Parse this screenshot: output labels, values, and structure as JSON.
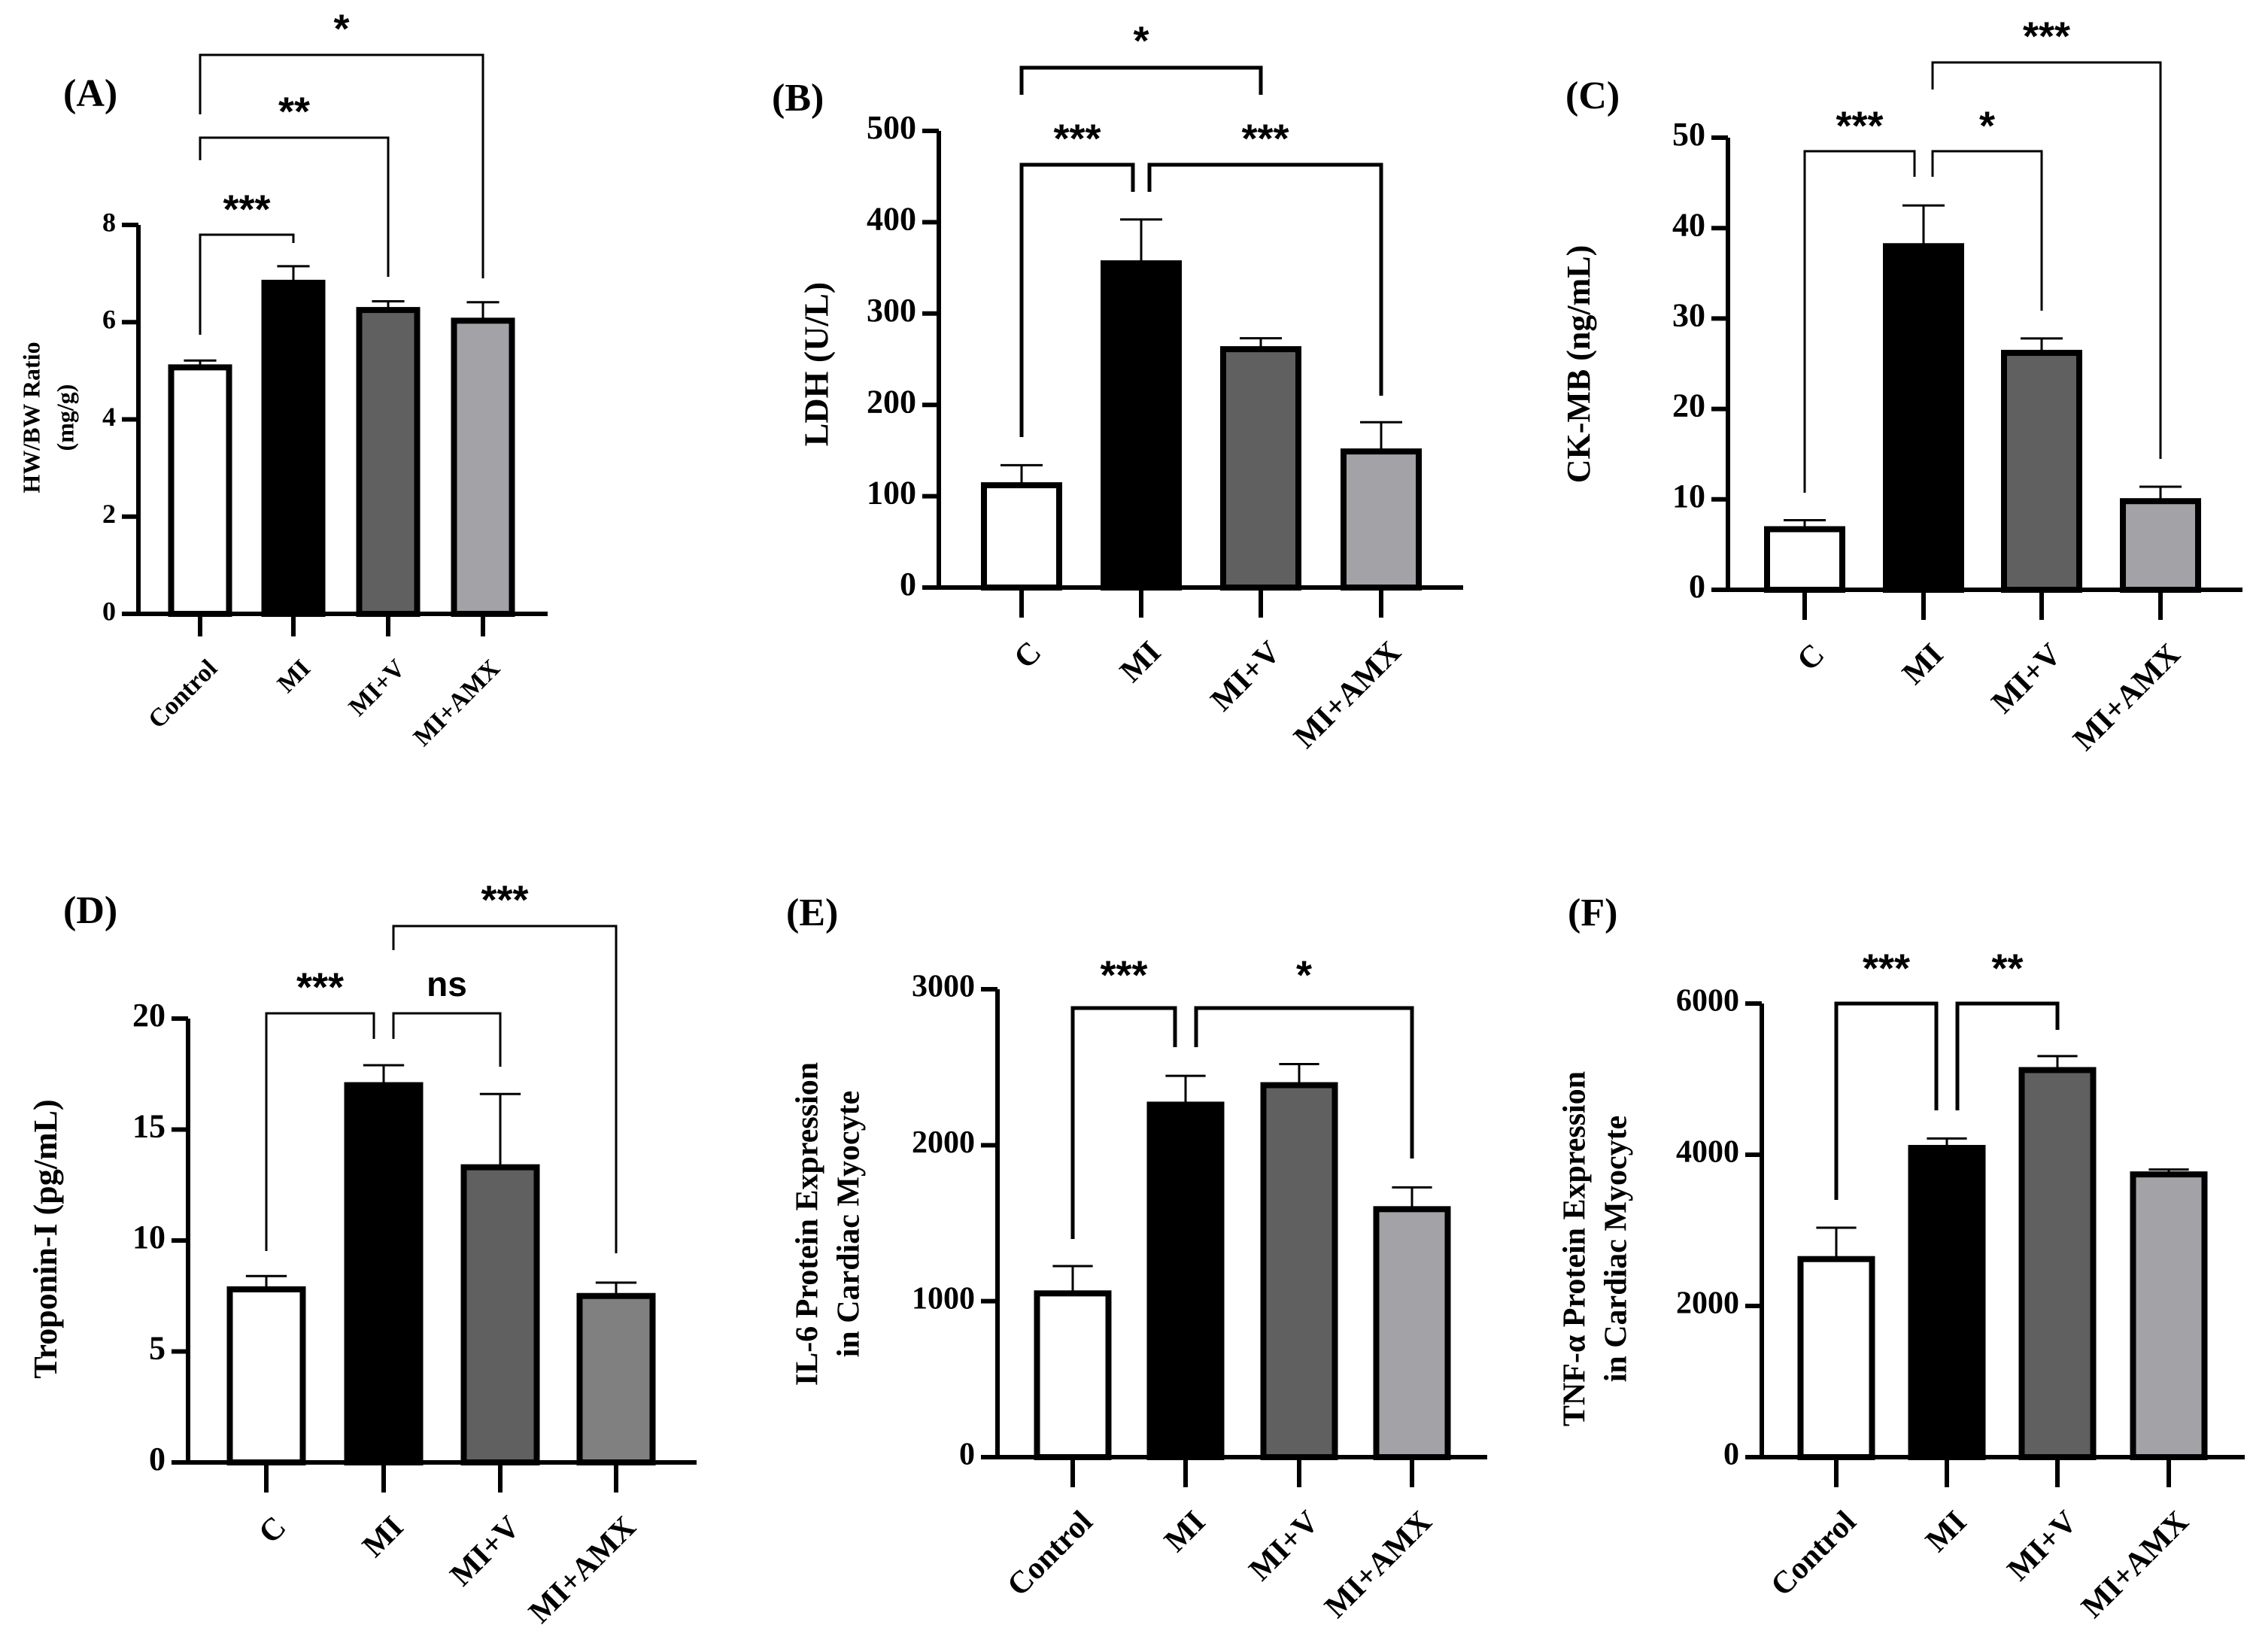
{
  "chart_data": [
    {
      "type": "bar",
      "panel_label": "(A)",
      "categories": [
        "Control",
        "MI",
        "MI+V",
        "MI+AMX"
      ],
      "values": [
        5.07,
        6.81,
        6.25,
        6.03
      ],
      "errors": [
        0.14,
        0.34,
        0.18,
        0.38
      ],
      "ylabel": [
        "HW/BW Ratio",
        "(mg/g)"
      ],
      "ylim": [
        0,
        8
      ],
      "yticks": [
        "0",
        "2",
        "4",
        "6",
        "8"
      ],
      "colors": [
        "#ffffff",
        "#000000",
        "#606060",
        "#a3a3a7"
      ],
      "comparisons": [
        {
          "groups": [
            "Control",
            "MI"
          ],
          "label": "***"
        },
        {
          "groups": [
            "Control",
            "MI+V"
          ],
          "label": "**"
        },
        {
          "groups": [
            "Control",
            "MI+AMX"
          ],
          "label": "*"
        }
      ],
      "grid": false
    },
    {
      "type": "bar",
      "panel_label": "(B)",
      "categories": [
        "C",
        "MI",
        "MI+V",
        "MI+AMX"
      ],
      "values": [
        112,
        355,
        261,
        149
      ],
      "errors": [
        22,
        48,
        12,
        32
      ],
      "ylabel": [
        "LDH (U/L)"
      ],
      "ylim": [
        0,
        500
      ],
      "yticks": [
        "0",
        "100",
        "200",
        "300",
        "400",
        "500"
      ],
      "colors": [
        "#ffffff",
        "#000000",
        "#606060",
        "#a3a3a7"
      ],
      "comparisons": [
        {
          "groups": [
            "C",
            "MI+V"
          ],
          "label": "*"
        },
        {
          "groups": [
            "C",
            "MI"
          ],
          "label": "***"
        },
        {
          "groups": [
            "MI",
            "MI+AMX"
          ],
          "label": "***"
        }
      ],
      "grid": false
    },
    {
      "type": "bar",
      "panel_label": "(C)",
      "categories": [
        "C",
        "MI",
        "MI+V",
        "MI+AMX"
      ],
      "values": [
        6.7,
        38.0,
        26.2,
        9.8
      ],
      "errors": [
        1.0,
        4.5,
        1.6,
        1.6
      ],
      "ylabel": [
        "CK-MB (ng/mL)"
      ],
      "ylim": [
        0,
        50
      ],
      "yticks": [
        "0",
        "10",
        "20",
        "30",
        "40",
        "50"
      ],
      "colors": [
        "#ffffff",
        "#000000",
        "#606060",
        "#a3a3a7"
      ],
      "comparisons": [
        {
          "groups": [
            "MI",
            "MI+AMX"
          ],
          "label": "***"
        },
        {
          "groups": [
            "C",
            "MI"
          ],
          "label": "***"
        },
        {
          "groups": [
            "MI",
            "MI+V"
          ],
          "label": "*"
        }
      ],
      "grid": false
    },
    {
      "type": "bar",
      "panel_label": "(D)",
      "categories": [
        "C",
        "MI",
        "MI+V",
        "MI+AMX"
      ],
      "values": [
        7.8,
        17.0,
        13.3,
        7.5
      ],
      "errors": [
        0.6,
        0.9,
        3.3,
        0.6
      ],
      "ylabel": [
        "Troponin-I (pg/mL)"
      ],
      "ylim": [
        0,
        20
      ],
      "yticks": [
        "0",
        "5",
        "10",
        "15",
        "20"
      ],
      "colors": [
        "#ffffff",
        "#000000",
        "#606060",
        "#808080"
      ],
      "comparisons": [
        {
          "groups": [
            "MI",
            "MI+AMX"
          ],
          "label": "***"
        },
        {
          "groups": [
            "C",
            "MI"
          ],
          "label": "***"
        },
        {
          "groups": [
            "MI",
            "MI+V"
          ],
          "label": "ns"
        }
      ],
      "grid": false
    },
    {
      "type": "bar",
      "panel_label": "(E)",
      "categories": [
        "Control",
        "MI",
        "MI+V",
        "MI+AMX"
      ],
      "values": [
        1050,
        2260,
        2385,
        1590
      ],
      "errors": [
        175,
        185,
        135,
        140
      ],
      "ylabel": [
        "IL-6 Protein Expression",
        "in Cardiac Myocyte"
      ],
      "ylim": [
        0,
        3000
      ],
      "yticks": [
        "0",
        "1000",
        "2000",
        "3000"
      ],
      "colors": [
        "#ffffff",
        "#000000",
        "#606060",
        "#a3a3a7"
      ],
      "comparisons": [
        {
          "groups": [
            "Control",
            "MI"
          ],
          "label": "***"
        },
        {
          "groups": [
            "MI",
            "MI+AMX"
          ],
          "label": "*"
        }
      ],
      "grid": false
    },
    {
      "type": "bar",
      "panel_label": "(F)",
      "categories": [
        "Control",
        "MI",
        "MI+V",
        "MI+AMX"
      ],
      "values": [
        2620,
        4090,
        5120,
        3740
      ],
      "errors": [
        415,
        125,
        185,
        65
      ],
      "ylabel": [
        "TNF-α Protein Expression",
        "in Cardiac Myocyte"
      ],
      "ylim": [
        0,
        6000
      ],
      "yticks": [
        "0",
        "2000",
        "4000",
        "6000"
      ],
      "colors": [
        "#ffffff",
        "#000000",
        "#606060",
        "#a3a3a7"
      ],
      "comparisons": [
        {
          "groups": [
            "Control",
            "MI"
          ],
          "label": "***"
        },
        {
          "groups": [
            "MI",
            "MI+V"
          ],
          "label": "**"
        }
      ],
      "grid": false
    }
  ]
}
